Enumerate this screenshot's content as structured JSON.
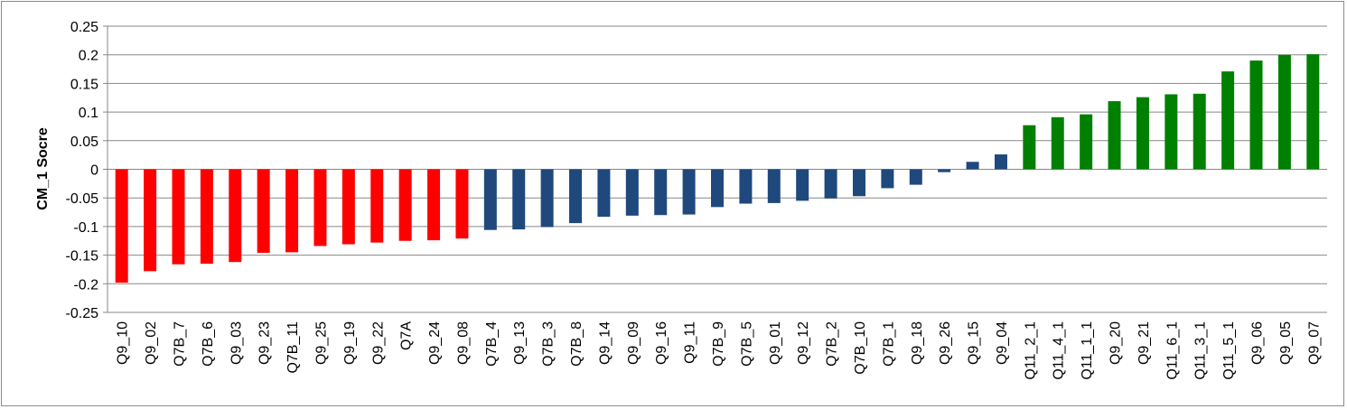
{
  "chart_data": {
    "type": "bar",
    "title": "",
    "xlabel": "",
    "ylabel": "CM_1 Socre",
    "ylim": [
      -0.25,
      0.25
    ],
    "ytick_step": 0.05,
    "ytick_labels": [
      "0.25",
      "0.2",
      "0.15",
      "0.1",
      "0.05",
      "0",
      "-0.05",
      "-0.1",
      "-0.15",
      "-0.2",
      "-0.25"
    ],
    "grid": true,
    "legend": "none",
    "colors": {
      "negative_high": "#ff0000",
      "negative": "#1f497d",
      "positive": "#008000"
    },
    "categories": [
      "Q9_10",
      "Q9_02",
      "Q7B_7",
      "Q7B_6",
      "Q9_03",
      "Q9_23",
      "Q7B_11",
      "Q9_25",
      "Q9_19",
      "Q9_22",
      "Q7A",
      "Q9_24",
      "Q9_08",
      "Q7B_4",
      "Q9_13",
      "Q7B_3",
      "Q7B_8",
      "Q9_14",
      "Q9_09",
      "Q9_16",
      "Q9_11",
      "Q7B_9",
      "Q7B_5",
      "Q9_01",
      "Q9_12",
      "Q7B_2",
      "Q7B_10",
      "Q7B_1",
      "Q9_18",
      "Q9_26",
      "Q9_15",
      "Q9_04",
      "Q11_2_1",
      "Q11_4_1",
      "Q11_1_1",
      "Q9_20",
      "Q9_21",
      "Q11_6_1",
      "Q11_3_1",
      "Q11_5_1",
      "Q9_06",
      "Q9_05",
      "Q9_07"
    ],
    "values": [
      -0.198,
      -0.178,
      -0.166,
      -0.165,
      -0.162,
      -0.146,
      -0.145,
      -0.134,
      -0.131,
      -0.128,
      -0.125,
      -0.124,
      -0.121,
      -0.106,
      -0.105,
      -0.101,
      -0.094,
      -0.083,
      -0.081,
      -0.08,
      -0.079,
      -0.066,
      -0.06,
      -0.059,
      -0.055,
      -0.051,
      -0.047,
      -0.033,
      -0.027,
      -0.005,
      0.013,
      0.026,
      0.077,
      0.091,
      0.096,
      0.119,
      0.126,
      0.131,
      0.132,
      0.171,
      0.19,
      0.2,
      0.201
    ],
    "bar_groups": [
      "red",
      "red",
      "red",
      "red",
      "red",
      "red",
      "red",
      "red",
      "red",
      "red",
      "red",
      "red",
      "red",
      "blue",
      "blue",
      "blue",
      "blue",
      "blue",
      "blue",
      "blue",
      "blue",
      "blue",
      "blue",
      "blue",
      "blue",
      "blue",
      "blue",
      "blue",
      "blue",
      "blue",
      "blue",
      "blue",
      "green",
      "green",
      "green",
      "green",
      "green",
      "green",
      "green",
      "green",
      "green",
      "green",
      "green"
    ]
  }
}
